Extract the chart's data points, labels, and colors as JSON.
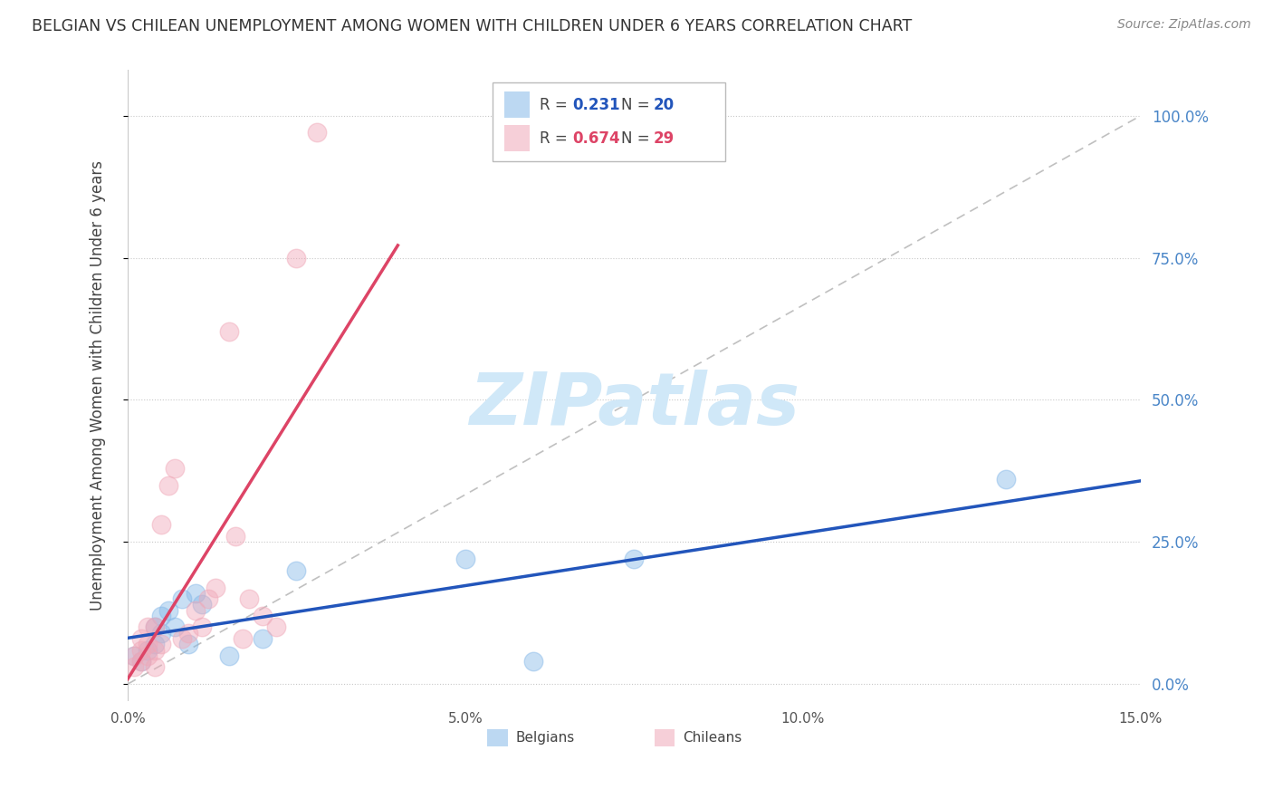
{
  "title": "BELGIAN VS CHILEAN UNEMPLOYMENT AMONG WOMEN WITH CHILDREN UNDER 6 YEARS CORRELATION CHART",
  "source": "Source: ZipAtlas.com",
  "ylabel": "Unemployment Among Women with Children Under 6 years",
  "xlim": [
    0.0,
    0.15
  ],
  "ylim": [
    -0.03,
    1.08
  ],
  "ytick_vals": [
    0.0,
    0.25,
    0.5,
    0.75,
    1.0
  ],
  "ytick_labels": [
    "0.0%",
    "25.0%",
    "50.0%",
    "75.0%",
    "100.0%"
  ],
  "background_color": "#ffffff",
  "grid_color": "#c8c8c8",
  "watermark_text": "ZIPatlas",
  "watermark_color": "#d0e8f8",
  "belgian_color": "#85b8e8",
  "chilean_color": "#f0a8b8",
  "belgian_line_color": "#2255bb",
  "chilean_line_color": "#dd4466",
  "diagonal_color": "#c0c0c0",
  "belgian_R": 0.231,
  "belgian_N": 20,
  "chilean_R": 0.674,
  "chilean_N": 29,
  "belgians_x": [
    0.001,
    0.002,
    0.003,
    0.004,
    0.004,
    0.005,
    0.005,
    0.006,
    0.007,
    0.008,
    0.009,
    0.01,
    0.011,
    0.015,
    0.02,
    0.025,
    0.05,
    0.06,
    0.075,
    0.13
  ],
  "belgians_y": [
    0.05,
    0.04,
    0.06,
    0.07,
    0.1,
    0.09,
    0.12,
    0.13,
    0.1,
    0.15,
    0.07,
    0.16,
    0.14,
    0.05,
    0.08,
    0.2,
    0.22,
    0.04,
    0.22,
    0.36
  ],
  "chileans_x": [
    0.001,
    0.001,
    0.002,
    0.002,
    0.002,
    0.003,
    0.003,
    0.003,
    0.004,
    0.004,
    0.004,
    0.005,
    0.005,
    0.006,
    0.007,
    0.008,
    0.009,
    0.01,
    0.011,
    0.012,
    0.013,
    0.015,
    0.016,
    0.017,
    0.018,
    0.02,
    0.022,
    0.025,
    0.028
  ],
  "chileans_y": [
    0.03,
    0.05,
    0.04,
    0.06,
    0.08,
    0.05,
    0.07,
    0.1,
    0.03,
    0.06,
    0.1,
    0.07,
    0.28,
    0.35,
    0.38,
    0.08,
    0.09,
    0.13,
    0.1,
    0.15,
    0.17,
    0.62,
    0.26,
    0.08,
    0.15,
    0.12,
    0.1,
    0.75,
    0.97
  ]
}
